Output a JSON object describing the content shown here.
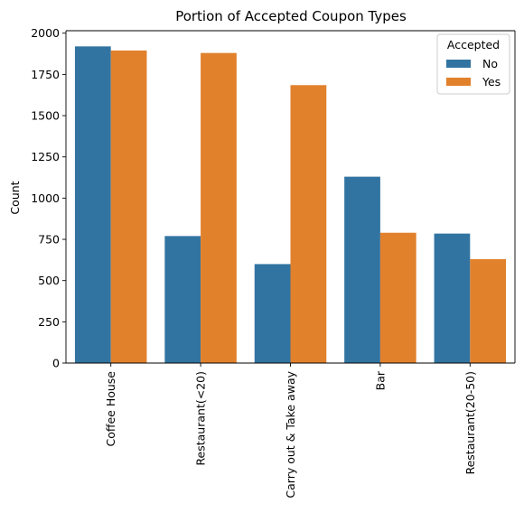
{
  "chart_data": {
    "type": "bar",
    "title": "Portion of Accepted Coupon Types",
    "xlabel": "",
    "ylabel": "Count",
    "categories": [
      "Coffee House",
      "Restaurant(<20)",
      "Carry out & Take away",
      "Bar",
      "Restaurant(20-50)"
    ],
    "series": [
      {
        "name": "No",
        "color": "#3274a1",
        "values": [
          1920,
          770,
          600,
          1130,
          785
        ]
      },
      {
        "name": "Yes",
        "color": "#e1812c",
        "values": [
          1895,
          1880,
          1685,
          790,
          630
        ]
      }
    ],
    "yticks": [
      0,
      250,
      500,
      750,
      1000,
      1250,
      1500,
      1750,
      2000
    ],
    "ylim": [
      0,
      2015
    ],
    "legend": {
      "title": "Accepted",
      "placement": "top-right"
    },
    "grid": false
  }
}
